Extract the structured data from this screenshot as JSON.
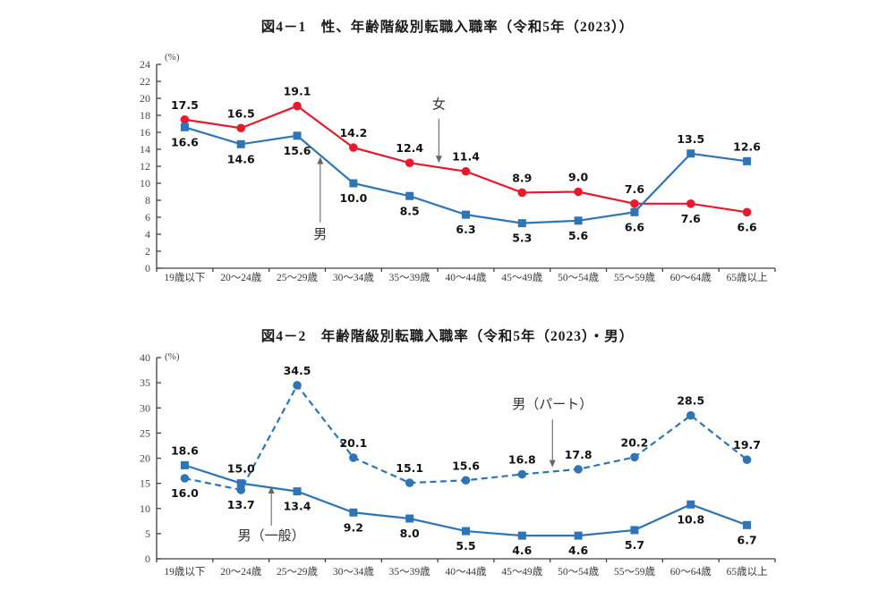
{
  "page": {
    "background": "#ffffff"
  },
  "colors": {
    "axis": "#404040",
    "tick_label": "#4f4444",
    "data_label": "#111111",
    "annotation": "#333333",
    "arrow": "#666666",
    "female_red": "#e8192c",
    "male_blue": "#2e75b6"
  },
  "chart_data": [
    {
      "type": "line",
      "title": "図4－1　性、年齢階級別転職入職率（令和5年（2023））",
      "unit_label": "(%)",
      "ylim": [
        0,
        24
      ],
      "y_step": 2,
      "grid": false,
      "categories": [
        "19歳以下",
        "20～24歳",
        "25～29歳",
        "30～34歳",
        "35～39歳",
        "40～44歳",
        "45～49歳",
        "50～54歳",
        "55～59歳",
        "60～64歳",
        "65歳以上"
      ],
      "series": [
        {
          "name": "女",
          "color": "#e8192c",
          "marker": "circle",
          "line": "solid",
          "values": [
            17.5,
            16.5,
            19.1,
            14.2,
            12.4,
            11.4,
            8.9,
            9.0,
            7.6,
            7.6,
            6.6
          ],
          "label_side": [
            "above",
            "above",
            "above",
            "above",
            "above",
            "above",
            "above",
            "above",
            "above",
            "below",
            "below"
          ]
        },
        {
          "name": "男",
          "color": "#2e75b6",
          "marker": "square",
          "line": "solid",
          "values": [
            16.6,
            14.6,
            15.6,
            10.0,
            8.5,
            6.3,
            5.3,
            5.6,
            6.6,
            13.5,
            12.6
          ],
          "label_side": [
            "below",
            "below",
            "below",
            "below",
            "below",
            "below",
            "below",
            "below",
            "below",
            "above",
            "above"
          ]
        }
      ],
      "annotations": [
        {
          "text": "女",
          "x_index": 4.52,
          "text_y": 19.3,
          "arrow_from": 17.6,
          "arrow_to": 12.4
        },
        {
          "text": "男",
          "x_index": 2.41,
          "text_y": 4.0,
          "arrow_from": 5.4,
          "arrow_to": 13.1
        }
      ]
    },
    {
      "type": "line",
      "title": "図4－2　年齢階級別転職入職率（令和5年（2023）・男）",
      "unit_label": "(%)",
      "ylim": [
        0,
        40
      ],
      "y_step": 5,
      "grid": false,
      "categories": [
        "19歳以下",
        "20～24歳",
        "25～29歳",
        "30～34歳",
        "35～39歳",
        "40～44歳",
        "45～49歳",
        "50～54歳",
        "55～59歳",
        "60～64歳",
        "65歳以上"
      ],
      "series": [
        {
          "name": "男（パート）",
          "color": "#2e75b6",
          "marker": "circle",
          "line": "dashed",
          "values": [
            16.0,
            13.7,
            34.5,
            20.1,
            15.1,
            15.6,
            16.8,
            17.8,
            20.2,
            28.5,
            19.7
          ],
          "label_side": [
            "below",
            "below",
            "above",
            "above",
            "above",
            "above",
            "above",
            "above",
            "above",
            "above",
            "above"
          ]
        },
        {
          "name": "男（一般）",
          "color": "#2e75b6",
          "marker": "square",
          "line": "solid",
          "values": [
            18.6,
            15.0,
            13.4,
            9.2,
            8.0,
            5.5,
            4.6,
            4.6,
            5.7,
            10.8,
            6.7
          ],
          "label_side": [
            "above",
            "above",
            "below",
            "below",
            "below",
            "below",
            "below",
            "below",
            "below",
            "below",
            "below"
          ]
        }
      ],
      "annotations": [
        {
          "text": "男（パート）",
          "x_index": 6.54,
          "text_y": 30.8,
          "arrow_from": 27.7,
          "arrow_to": 18.2
        },
        {
          "text": "男（一般）",
          "x_index": 1.54,
          "text_y": 4.6,
          "arrow_from": 6.6,
          "arrow_to": 14.4
        }
      ]
    }
  ]
}
